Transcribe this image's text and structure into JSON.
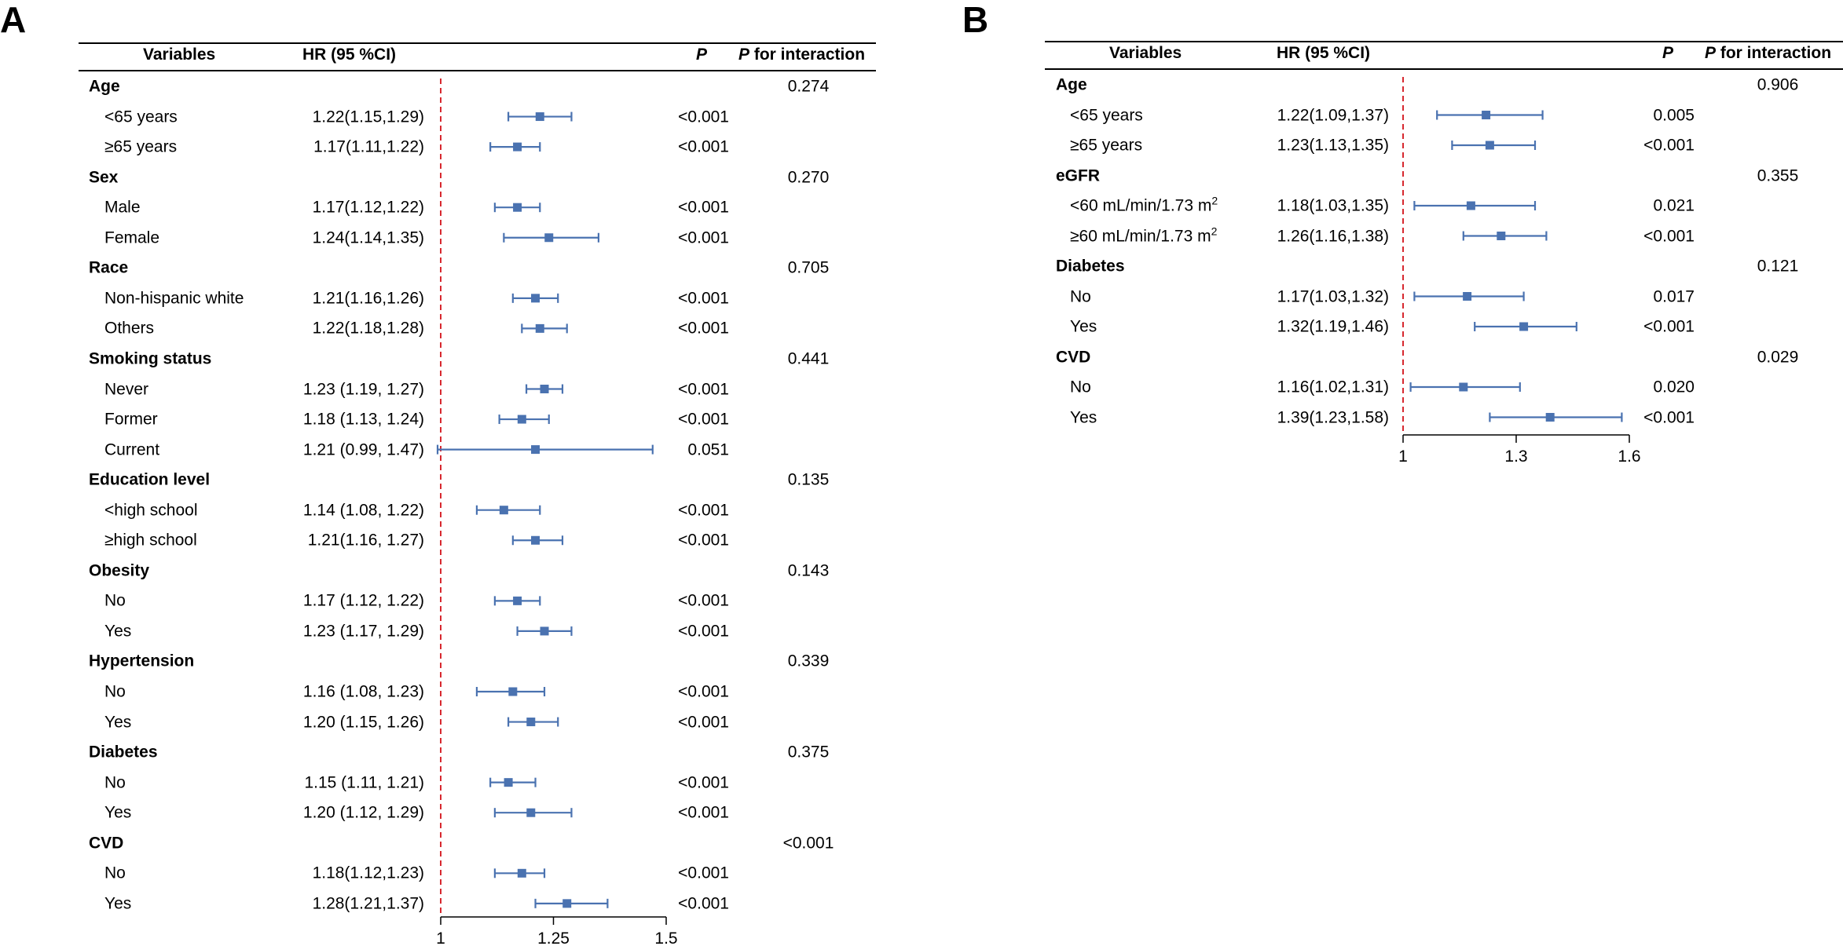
{
  "colors": {
    "marker": "#4a72b0",
    "reference_line": "#d7282f",
    "axis": "#000000"
  },
  "chart_data": [
    {
      "type": "forest",
      "panel_label": "A",
      "headers": {
        "variables": "Variables",
        "hr": "HR (95 %CI)",
        "p": "P",
        "p_interaction": "P for interaction"
      },
      "xlim": [
        1,
        1.5
      ],
      "ticks": [
        1,
        1.25,
        1.5
      ],
      "tick_labels": [
        "1",
        "1.25",
        "1.5"
      ],
      "reference_value": 1,
      "rows": [
        {
          "kind": "group",
          "label": "Age",
          "p_interaction": "0.274"
        },
        {
          "kind": "item",
          "label": "<65 years",
          "hr_text": "1.22(1.15,1.29)",
          "p": "<0.001",
          "hr": 1.22,
          "lo": 1.15,
          "hi": 1.29
        },
        {
          "kind": "item",
          "label": "≥65 years",
          "hr_text": "1.17(1.11,1.22)",
          "p": "<0.001",
          "hr": 1.17,
          "lo": 1.11,
          "hi": 1.22
        },
        {
          "kind": "group",
          "label": "Sex",
          "p_interaction": "0.270"
        },
        {
          "kind": "item",
          "label": "Male",
          "hr_text": "1.17(1.12,1.22)",
          "p": "<0.001",
          "hr": 1.17,
          "lo": 1.12,
          "hi": 1.22
        },
        {
          "kind": "item",
          "label": "Female",
          "hr_text": "1.24(1.14,1.35)",
          "p": "<0.001",
          "hr": 1.24,
          "lo": 1.14,
          "hi": 1.35
        },
        {
          "kind": "group",
          "label": "Race",
          "p_interaction": "0.705"
        },
        {
          "kind": "item",
          "label": "Non-hispanic white",
          "hr_text": "1.21(1.16,1.26)",
          "p": "<0.001",
          "hr": 1.21,
          "lo": 1.16,
          "hi": 1.26
        },
        {
          "kind": "item",
          "label": "Others",
          "hr_text": "1.22(1.18,1.28)",
          "p": "<0.001",
          "hr": 1.22,
          "lo": 1.18,
          "hi": 1.28
        },
        {
          "kind": "group",
          "label": "Smoking status",
          "p_interaction": "0.441"
        },
        {
          "kind": "item",
          "label": "Never",
          "hr_text": "1.23 (1.19, 1.27)",
          "p": "<0.001",
          "hr": 1.23,
          "lo": 1.19,
          "hi": 1.27
        },
        {
          "kind": "item",
          "label": "Former",
          "hr_text": "1.18 (1.13, 1.24)",
          "p": "<0.001",
          "hr": 1.18,
          "lo": 1.13,
          "hi": 1.24
        },
        {
          "kind": "item",
          "label": "Current",
          "hr_text": "1.21 (0.99, 1.47)",
          "p": "0.051",
          "hr": 1.21,
          "lo": 0.99,
          "hi": 1.47
        },
        {
          "kind": "group",
          "label": "Education level",
          "p_interaction": "0.135"
        },
        {
          "kind": "item",
          "label": "<high school",
          "hr_text": "1.14 (1.08, 1.22)",
          "p": "<0.001",
          "hr": 1.14,
          "lo": 1.08,
          "hi": 1.22
        },
        {
          "kind": "item",
          "label": "≥high school",
          "hr_text": "1.21(1.16, 1.27)",
          "p": "<0.001",
          "hr": 1.21,
          "lo": 1.16,
          "hi": 1.27
        },
        {
          "kind": "group",
          "label": "Obesity",
          "p_interaction": "0.143"
        },
        {
          "kind": "item",
          "label": "No",
          "hr_text": "1.17 (1.12, 1.22)",
          "p": "<0.001",
          "hr": 1.17,
          "lo": 1.12,
          "hi": 1.22
        },
        {
          "kind": "item",
          "label": "Yes",
          "hr_text": "1.23 (1.17, 1.29)",
          "p": "<0.001",
          "hr": 1.23,
          "lo": 1.17,
          "hi": 1.29
        },
        {
          "kind": "group",
          "label": "Hypertension",
          "p_interaction": "0.339"
        },
        {
          "kind": "item",
          "label": "No",
          "hr_text": "1.16 (1.08, 1.23)",
          "p": "<0.001",
          "hr": 1.16,
          "lo": 1.08,
          "hi": 1.23
        },
        {
          "kind": "item",
          "label": "Yes",
          "hr_text": "1.20 (1.15, 1.26)",
          "p": "<0.001",
          "hr": 1.2,
          "lo": 1.15,
          "hi": 1.26
        },
        {
          "kind": "group",
          "label": "Diabetes",
          "p_interaction": "0.375"
        },
        {
          "kind": "item",
          "label": "No",
          "hr_text": "1.15 (1.11, 1.21)",
          "p": "<0.001",
          "hr": 1.15,
          "lo": 1.11,
          "hi": 1.21
        },
        {
          "kind": "item",
          "label": "Yes",
          "hr_text": "1.20 (1.12, 1.29)",
          "p": "<0.001",
          "hr": 1.2,
          "lo": 1.12,
          "hi": 1.29
        },
        {
          "kind": "group",
          "label": "CVD",
          "p_interaction": "<0.001"
        },
        {
          "kind": "item",
          "label": "No",
          "hr_text": "1.18(1.12,1.23)",
          "p": "<0.001",
          "hr": 1.18,
          "lo": 1.12,
          "hi": 1.23
        },
        {
          "kind": "item",
          "label": "Yes",
          "hr_text": "1.28(1.21,1.37)",
          "p": "<0.001",
          "hr": 1.28,
          "lo": 1.21,
          "hi": 1.37
        }
      ]
    },
    {
      "type": "forest",
      "panel_label": "B",
      "headers": {
        "variables": "Variables",
        "hr": "HR (95 %CI)",
        "p": "P",
        "p_interaction": "P for interaction"
      },
      "xlim": [
        1,
        1.6
      ],
      "ticks": [
        1,
        1.3,
        1.6
      ],
      "tick_labels": [
        "1",
        "1.3",
        "1.6"
      ],
      "reference_value": 1,
      "rows": [
        {
          "kind": "group",
          "label": "Age",
          "p_interaction": "0.906"
        },
        {
          "kind": "item",
          "label": "<65 years",
          "hr_text": "1.22(1.09,1.37)",
          "p": "0.005",
          "hr": 1.22,
          "lo": 1.09,
          "hi": 1.37
        },
        {
          "kind": "item",
          "label": "≥65 years",
          "hr_text": "1.23(1.13,1.35)",
          "p": "<0.001",
          "hr": 1.23,
          "lo": 1.13,
          "hi": 1.35
        },
        {
          "kind": "group",
          "label": "eGFR",
          "p_interaction": "0.355"
        },
        {
          "kind": "item",
          "label": "<60 mL/min/1.73 m",
          "label_sup": "2",
          "hr_text": "1.18(1.03,1.35)",
          "p": "0.021",
          "hr": 1.18,
          "lo": 1.03,
          "hi": 1.35
        },
        {
          "kind": "item",
          "label": "≥60 mL/min/1.73 m",
          "label_sup": "2",
          "hr_text": "1.26(1.16,1.38)",
          "p": "<0.001",
          "hr": 1.26,
          "lo": 1.16,
          "hi": 1.38
        },
        {
          "kind": "group",
          "label": "Diabetes",
          "p_interaction": "0.121"
        },
        {
          "kind": "item",
          "label": "No",
          "hr_text": "1.17(1.03,1.32)",
          "p": "0.017",
          "hr": 1.17,
          "lo": 1.03,
          "hi": 1.32
        },
        {
          "kind": "item",
          "label": "Yes",
          "hr_text": "1.32(1.19,1.46)",
          "p": "<0.001",
          "hr": 1.32,
          "lo": 1.19,
          "hi": 1.46
        },
        {
          "kind": "group",
          "label": "CVD",
          "p_interaction": "0.029"
        },
        {
          "kind": "item",
          "label": "No",
          "hr_text": "1.16(1.02,1.31)",
          "p": "0.020",
          "hr": 1.16,
          "lo": 1.02,
          "hi": 1.31
        },
        {
          "kind": "item",
          "label": "Yes",
          "hr_text": "1.39(1.23,1.58)",
          "p": "<0.001",
          "hr": 1.39,
          "lo": 1.23,
          "hi": 1.58
        }
      ]
    }
  ]
}
